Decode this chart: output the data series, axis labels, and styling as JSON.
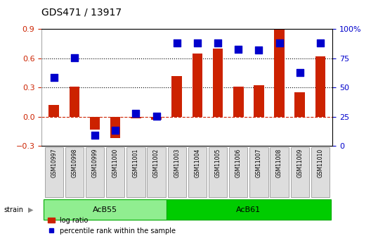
{
  "title": "GDS471 / 13917",
  "samples": [
    "GSM10997",
    "GSM10998",
    "GSM10999",
    "GSM11000",
    "GSM11001",
    "GSM11002",
    "GSM11003",
    "GSM11004",
    "GSM11005",
    "GSM11006",
    "GSM11007",
    "GSM11008",
    "GSM11009",
    "GSM11010"
  ],
  "log_ratio": [
    0.12,
    0.31,
    -0.13,
    -0.22,
    -0.02,
    -0.03,
    0.42,
    0.65,
    0.7,
    0.31,
    0.32,
    0.9,
    0.25,
    0.62
  ],
  "percentile": [
    0.585,
    0.755,
    0.09,
    0.13,
    0.275,
    0.255,
    0.88,
    0.88,
    0.88,
    0.83,
    0.82,
    0.88,
    0.63,
    0.88
  ],
  "groups": [
    {
      "label": "AcB55",
      "start": 0,
      "end": 5,
      "color": "#90ee90"
    },
    {
      "label": "AcB61",
      "start": 6,
      "end": 13,
      "color": "#00cc00"
    }
  ],
  "ylim_left": [
    -0.3,
    0.9
  ],
  "ylim_right": [
    0,
    100
  ],
  "yticks_left": [
    -0.3,
    0.0,
    0.3,
    0.6,
    0.9
  ],
  "yticks_right": [
    0,
    25,
    50,
    75,
    100
  ],
  "hlines": [
    0.3,
    0.6
  ],
  "bar_color": "#cc2200",
  "dot_color": "#0000cc",
  "bar_color_neg": "#cc2200",
  "dot_size": 60,
  "legend_labels": [
    "log ratio",
    "percentile rank within the sample"
  ],
  "background_color": "#ffffff",
  "plot_bg_color": "#ffffff",
  "tick_label_color_left": "#cc2200",
  "tick_label_color_right": "#0000cc"
}
